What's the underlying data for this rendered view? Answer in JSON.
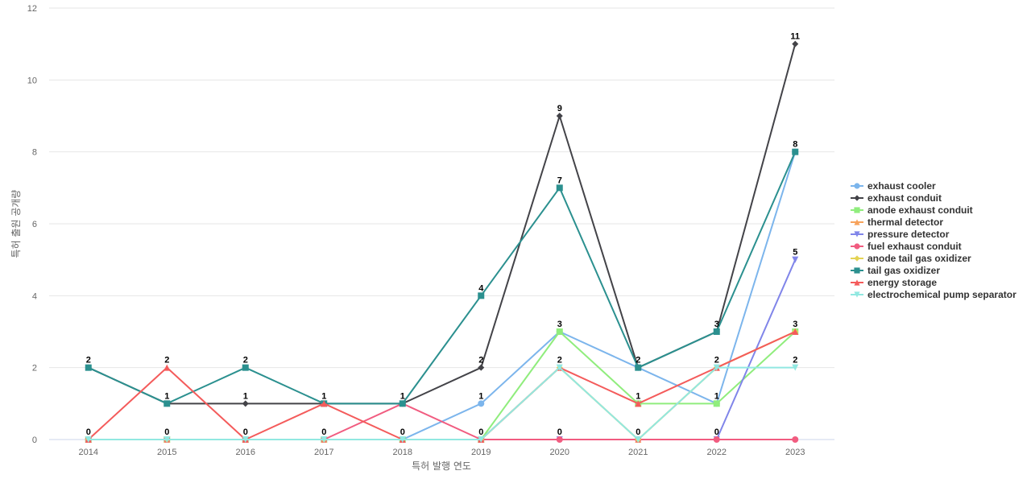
{
  "chart_data": {
    "type": "line",
    "xlabel": "특허 발행 연도",
    "ylabel": "특허 출원 공개량",
    "ylim": [
      0,
      12
    ],
    "yticks": [
      0,
      2,
      4,
      6,
      8,
      10,
      12
    ],
    "categories": [
      "2014",
      "2015",
      "2016",
      "2017",
      "2018",
      "2019",
      "2020",
      "2021",
      "2022",
      "2023"
    ],
    "legend_position": "right",
    "grid": true,
    "series": [
      {
        "name": "exhaust cooler",
        "color": "#7cb5ec",
        "marker": "circle",
        "values": [
          0,
          0,
          0,
          0,
          0,
          1,
          3,
          2,
          1,
          8
        ]
      },
      {
        "name": "exhaust conduit",
        "color": "#434348",
        "marker": "diamond",
        "values": [
          2,
          1,
          1,
          1,
          1,
          2,
          9,
          2,
          3,
          11
        ]
      },
      {
        "name": "anode exhaust conduit",
        "color": "#90ed7d",
        "marker": "square",
        "values": [
          0,
          0,
          0,
          0,
          0,
          0,
          3,
          1,
          1,
          3
        ]
      },
      {
        "name": "thermal detector",
        "color": "#f7a35c",
        "marker": "triangle",
        "values": [
          0,
          0,
          0,
          0,
          0,
          0,
          2,
          0,
          2,
          3
        ]
      },
      {
        "name": "pressure detector",
        "color": "#8085e9",
        "marker": "triangle-down",
        "values": [
          0,
          0,
          0,
          0,
          0,
          0,
          0,
          0,
          0,
          5
        ]
      },
      {
        "name": "fuel exhaust conduit",
        "color": "#f15c80",
        "marker": "circle",
        "values": [
          0,
          0,
          0,
          0,
          1,
          0,
          0,
          0,
          0,
          0
        ]
      },
      {
        "name": "anode tail gas oxidizer",
        "color": "#e4d354",
        "marker": "diamond",
        "values": [
          0,
          0,
          0,
          0,
          0,
          0,
          2,
          0,
          2,
          3
        ]
      },
      {
        "name": "tail gas oxidizer",
        "color": "#2b908f",
        "marker": "square",
        "values": [
          2,
          1,
          2,
          1,
          1,
          4,
          7,
          2,
          3,
          8
        ]
      },
      {
        "name": "energy storage",
        "color": "#f45b5b",
        "marker": "triangle",
        "values": [
          0,
          2,
          0,
          1,
          0,
          0,
          2,
          1,
          2,
          3
        ]
      },
      {
        "name": "electrochemical pump separator",
        "color": "#91e8e1",
        "marker": "triangle-down",
        "values": [
          0,
          0,
          0,
          0,
          0,
          0,
          2,
          0,
          2,
          2
        ]
      }
    ],
    "data_labels": [
      {
        "x": "2014",
        "text": "2",
        "value": 2
      },
      {
        "x": "2014",
        "text": "0",
        "value": 0
      },
      {
        "x": "2015",
        "text": "2",
        "value": 2
      },
      {
        "x": "2015",
        "text": "1",
        "value": 1
      },
      {
        "x": "2015",
        "text": "0",
        "value": 0
      },
      {
        "x": "2016",
        "text": "2",
        "value": 2
      },
      {
        "x": "2016",
        "text": "1",
        "value": 1
      },
      {
        "x": "2016",
        "text": "0",
        "value": 0
      },
      {
        "x": "2017",
        "text": "1",
        "value": 1
      },
      {
        "x": "2017",
        "text": "0",
        "value": 0
      },
      {
        "x": "2018",
        "text": "1",
        "value": 1
      },
      {
        "x": "2018",
        "text": "0",
        "value": 0
      },
      {
        "x": "2019",
        "text": "4",
        "value": 4
      },
      {
        "x": "2019",
        "text": "2",
        "value": 2
      },
      {
        "x": "2019",
        "text": "1",
        "value": 1
      },
      {
        "x": "2019",
        "text": "0",
        "value": 0
      },
      {
        "x": "2020",
        "text": "9",
        "value": 9
      },
      {
        "x": "2020",
        "text": "7",
        "value": 7
      },
      {
        "x": "2020",
        "text": "3",
        "value": 3
      },
      {
        "x": "2020",
        "text": "2",
        "value": 2
      },
      {
        "x": "2020",
        "text": "0",
        "value": 0
      },
      {
        "x": "2021",
        "text": "2",
        "value": 2
      },
      {
        "x": "2021",
        "text": "1",
        "value": 1
      },
      {
        "x": "2021",
        "text": "0",
        "value": 0
      },
      {
        "x": "2022",
        "text": "3",
        "value": 3
      },
      {
        "x": "2022",
        "text": "2",
        "value": 2
      },
      {
        "x": "2022",
        "text": "1",
        "value": 1
      },
      {
        "x": "2022",
        "text": "0",
        "value": 0
      },
      {
        "x": "2023",
        "text": "11",
        "value": 11
      },
      {
        "x": "2023",
        "text": "8",
        "value": 8
      },
      {
        "x": "2023",
        "text": "5",
        "value": 5
      },
      {
        "x": "2023",
        "text": "3",
        "value": 3
      },
      {
        "x": "2023",
        "text": "2",
        "value": 2
      }
    ]
  }
}
